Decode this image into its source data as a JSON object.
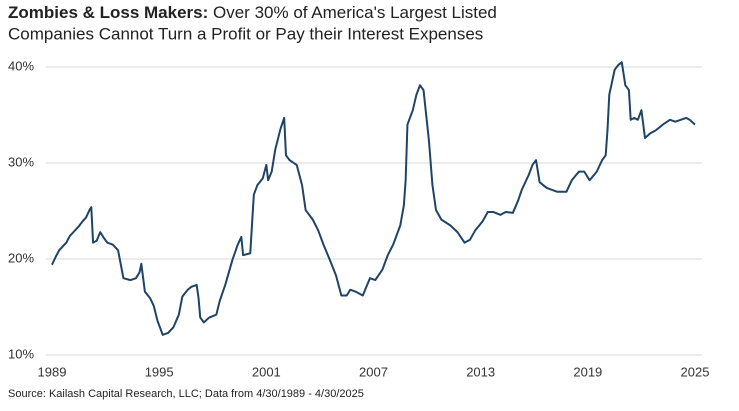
{
  "chart_data": {
    "type": "line",
    "title_lead": "Zombies & Loss Makers:",
    "title": " Over 30% of America's Largest Listed",
    "title_line2": "Companies Cannot Turn a Profit or Pay their Interest Expenses",
    "source": "Source: Kailash Capital Research, LLC; Data from 4/30/1989 - 4/30/2025",
    "xlim": [
      1989,
      2025
    ],
    "xticks": [
      1989,
      1995,
      2001,
      2007,
      2013,
      2019,
      2025
    ],
    "ylim": [
      10,
      40
    ],
    "yticks": [
      {
        "value": 10,
        "label": "10%"
      },
      {
        "value": 20,
        "label": "20%"
      },
      {
        "value": 30,
        "label": "30%"
      },
      {
        "value": 40,
        "label": "40%"
      }
    ],
    "grid": true,
    "series": [
      {
        "color": "#1f4466",
        "x": [
          1989.0,
          1989.2,
          1989.4,
          1989.8,
          1990.0,
          1990.2,
          1990.5,
          1990.7,
          1990.9,
          1991.1,
          1991.2,
          1991.3,
          1991.5,
          1991.7,
          1991.9,
          1992.1,
          1992.4,
          1992.7,
          1993.0,
          1993.4,
          1993.7,
          1993.9,
          1994.0,
          1994.2,
          1994.5,
          1994.7,
          1994.9,
          1995.2,
          1995.5,
          1995.8,
          1996.1,
          1996.3,
          1996.6,
          1996.8,
          1997.1,
          1997.2,
          1997.3,
          1997.5,
          1997.8,
          1998.2,
          1998.4,
          1998.7,
          1999.1,
          1999.4,
          1999.6,
          1999.7,
          2000.1,
          2000.3,
          2000.5,
          2000.8,
          2001.0,
          2001.1,
          2001.3,
          2001.5,
          2001.8,
          2002.0,
          2002.1,
          2002.3,
          2002.7,
          2003.0,
          2003.2,
          2003.6,
          2003.9,
          2004.2,
          2004.6,
          2004.9,
          2005.2,
          2005.5,
          2005.7,
          2006.0,
          2006.4,
          2006.8,
          2007.1,
          2007.5,
          2007.8,
          2008.1,
          2008.5,
          2008.7,
          2008.8,
          2008.9,
          2009.2,
          2009.4,
          2009.6,
          2009.8,
          2010.1,
          2010.3,
          2010.5,
          2010.8,
          2011.3,
          2011.7,
          2012.1,
          2012.4,
          2012.7,
          2013.1,
          2013.4,
          2013.7,
          2014.1,
          2014.4,
          2014.8,
          2015.1,
          2015.3,
          2015.7,
          2015.9,
          2016.1,
          2016.3,
          2016.7,
          2017.0,
          2017.3,
          2017.8,
          2018.1,
          2018.5,
          2018.8,
          2019.1,
          2019.5,
          2019.8,
          2020.0,
          2020.1,
          2020.2,
          2020.5,
          2020.7,
          2020.9,
          2021.1,
          2021.3,
          2021.4,
          2021.6,
          2021.8,
          2022.0,
          2022.2,
          2022.5,
          2022.8,
          2023.2,
          2023.6,
          2023.9,
          2024.2,
          2024.5,
          2024.7,
          2025.0
        ],
        "values": [
          19.4,
          20.2,
          20.9,
          21.7,
          22.4,
          22.8,
          23.4,
          23.9,
          24.3,
          25.1,
          25.4,
          21.7,
          21.9,
          22.8,
          22.2,
          21.7,
          21.5,
          20.9,
          18.0,
          17.8,
          18.0,
          18.6,
          19.5,
          16.6,
          15.9,
          15.1,
          13.6,
          12.1,
          12.3,
          12.9,
          14.2,
          16.1,
          16.8,
          17.1,
          17.3,
          16.0,
          13.9,
          13.4,
          13.9,
          14.2,
          15.7,
          17.3,
          19.9,
          21.5,
          22.3,
          20.4,
          20.6,
          26.7,
          27.7,
          28.4,
          29.8,
          28.2,
          29.1,
          31.4,
          33.6,
          34.7,
          30.8,
          30.3,
          29.8,
          27.7,
          25.1,
          24.1,
          23.0,
          21.5,
          19.7,
          18.3,
          16.2,
          16.2,
          16.8,
          16.6,
          16.2,
          18.0,
          17.8,
          18.9,
          20.4,
          21.5,
          23.5,
          25.6,
          28.2,
          34.0,
          35.5,
          37.1,
          38.1,
          37.6,
          32.4,
          27.7,
          25.1,
          24.1,
          23.5,
          22.8,
          21.7,
          22.0,
          23.0,
          23.9,
          24.9,
          24.9,
          24.6,
          24.9,
          24.8,
          26.1,
          27.2,
          28.8,
          29.8,
          30.3,
          28.0,
          27.4,
          27.2,
          27.0,
          27.0,
          28.2,
          29.1,
          29.1,
          28.2,
          29.1,
          30.3,
          30.8,
          33.4,
          37.1,
          39.7,
          40.2,
          40.5,
          38.1,
          37.6,
          34.5,
          34.7,
          34.5,
          35.5,
          32.6,
          33.1,
          33.4,
          34.0,
          34.5,
          34.3,
          34.5,
          34.7,
          34.5,
          34.0
        ]
      }
    ]
  }
}
